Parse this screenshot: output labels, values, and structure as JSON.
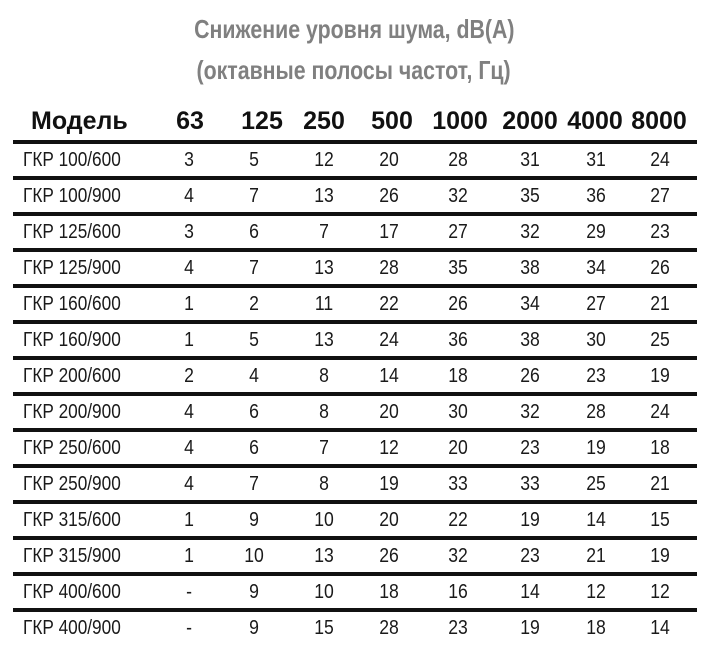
{
  "title": {
    "line1": "Снижение уровня шума, dB(A)",
    "line2": "(октавные полосы частот, Гц)"
  },
  "table": {
    "headers": [
      "Модель",
      "63",
      "125",
      "250",
      "500",
      "1000",
      "2000",
      "4000",
      "8000"
    ],
    "rows": [
      {
        "model": "ГКР 100/600",
        "values": [
          "3",
          "5",
          "12",
          "20",
          "28",
          "31",
          "31",
          "24"
        ]
      },
      {
        "model": "ГКР 100/900",
        "values": [
          "4",
          "7",
          "13",
          "26",
          "32",
          "35",
          "36",
          "27"
        ]
      },
      {
        "model": "ГКР 125/600",
        "values": [
          "3",
          "6",
          "7",
          "17",
          "27",
          "32",
          "29",
          "23"
        ]
      },
      {
        "model": "ГКР 125/900",
        "values": [
          "4",
          "7",
          "13",
          "28",
          "35",
          "38",
          "34",
          "26"
        ]
      },
      {
        "model": "ГКР 160/600",
        "values": [
          "1",
          "2",
          "11",
          "22",
          "26",
          "34",
          "27",
          "21"
        ]
      },
      {
        "model": "ГКР 160/900",
        "values": [
          "1",
          "5",
          "13",
          "24",
          "36",
          "38",
          "30",
          "25"
        ]
      },
      {
        "model": "ГКР 200/600",
        "values": [
          "2",
          "4",
          "8",
          "14",
          "18",
          "26",
          "23",
          "19"
        ]
      },
      {
        "model": "ГКР 200/900",
        "values": [
          "4",
          "6",
          "8",
          "20",
          "30",
          "32",
          "28",
          "24"
        ]
      },
      {
        "model": "ГКР 250/600",
        "values": [
          "4",
          "6",
          "7",
          "12",
          "20",
          "23",
          "19",
          "18"
        ]
      },
      {
        "model": "ГКР 250/900",
        "values": [
          "4",
          "7",
          "8",
          "19",
          "33",
          "33",
          "25",
          "21"
        ]
      },
      {
        "model": "ГКР 315/600",
        "values": [
          "1",
          "9",
          "10",
          "20",
          "22",
          "19",
          "14",
          "15"
        ]
      },
      {
        "model": "ГКР 315/900",
        "values": [
          "1",
          "10",
          "13",
          "26",
          "32",
          "23",
          "21",
          "19"
        ]
      },
      {
        "model": "ГКР 400/600",
        "values": [
          "-",
          "9",
          "10",
          "18",
          "16",
          "14",
          "12",
          "12"
        ]
      },
      {
        "model": "ГКР 400/900",
        "values": [
          "-",
          "9",
          "15",
          "28",
          "23",
          "19",
          "18",
          "14"
        ]
      }
    ]
  }
}
